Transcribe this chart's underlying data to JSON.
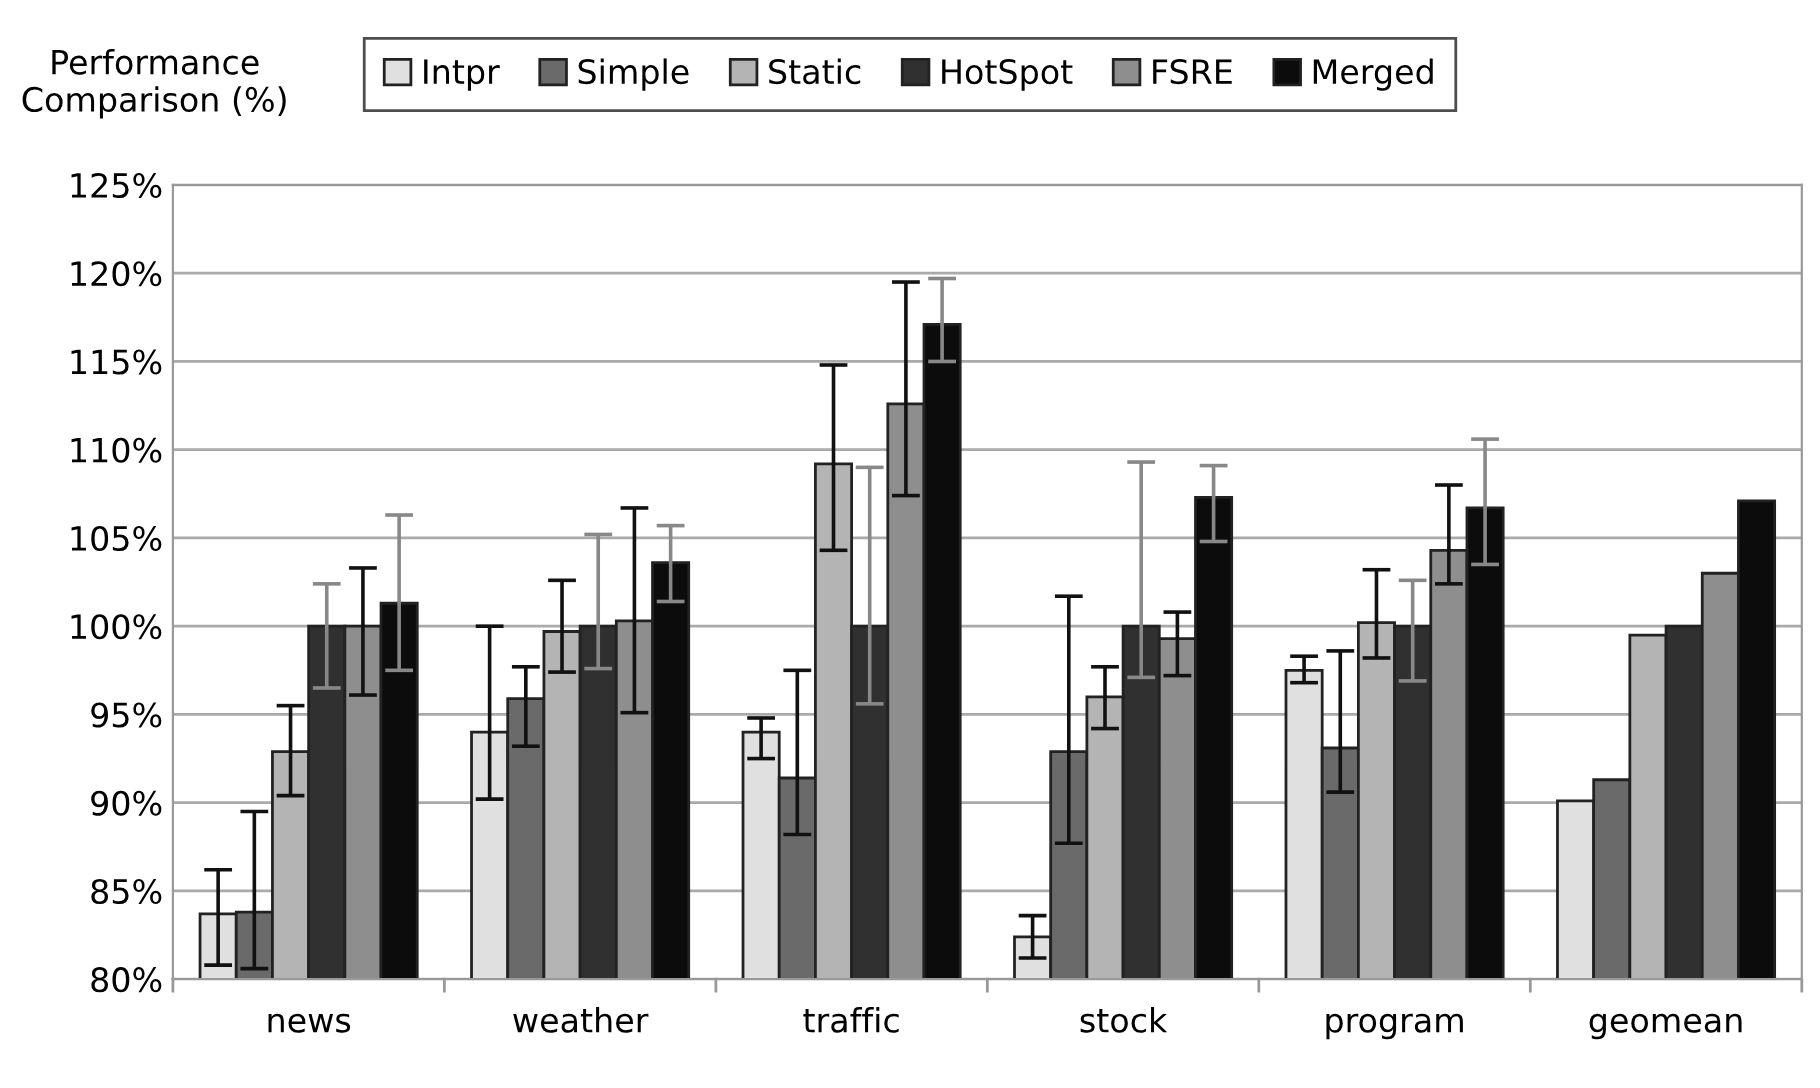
{
  "chart_data": {
    "type": "bar",
    "ylabel": "Performance\nComparison (%)",
    "categories": [
      "news",
      "weather",
      "traffic",
      "stock",
      "program",
      "geomean"
    ],
    "series": [
      {
        "name": "Intpr",
        "color": "#e0e0e0",
        "values": [
          83.7,
          94.0,
          94.0,
          82.4,
          97.5,
          90.1
        ],
        "errors": [
          [
            80.8,
            86.2
          ],
          [
            90.2,
            100
          ],
          [
            92.5,
            94.8
          ],
          [
            81.2,
            83.6
          ],
          [
            96.8,
            98.3
          ],
          null
        ]
      },
      {
        "name": "Simple",
        "color": "#6a6a6a",
        "values": [
          83.8,
          95.9,
          91.4,
          92.9,
          93.1,
          91.3
        ],
        "errors": [
          [
            80.6,
            89.5
          ],
          [
            93.2,
            97.7
          ],
          [
            88.2,
            97.5
          ],
          [
            87.7,
            101.7
          ],
          [
            90.6,
            98.6
          ],
          null
        ]
      },
      {
        "name": "Static",
        "color": "#b4b4b4",
        "values": [
          92.9,
          99.7,
          109.2,
          96.0,
          100.2,
          99.5
        ],
        "errors": [
          [
            90.4,
            95.5
          ],
          [
            97.4,
            102.6
          ],
          [
            104.3,
            114.8
          ],
          [
            94.2,
            97.7
          ],
          [
            98.2,
            103.2
          ],
          null
        ]
      },
      {
        "name": "HotSpot",
        "color": "#303030",
        "values": [
          100,
          100,
          100,
          100,
          100,
          100
        ],
        "errors": [
          [
            96.5,
            102.4
          ],
          [
            97.6,
            105.2
          ],
          [
            95.6,
            109
          ],
          [
            97.1,
            109.3
          ],
          [
            96.9,
            102.6
          ],
          null
        ]
      },
      {
        "name": "FSRE",
        "color": "#8e8e8e",
        "values": [
          100,
          100.3,
          112.6,
          99.3,
          104.3,
          103.0
        ],
        "errors": [
          [
            96.1,
            103.3
          ],
          [
            95.1,
            106.7
          ],
          [
            107.4,
            119.5
          ],
          [
            97.2,
            100.8
          ],
          [
            102.4,
            108
          ],
          null
        ]
      },
      {
        "name": "Merged",
        "color": "#0c0c0c",
        "values": [
          101.3,
          103.6,
          117.1,
          107.3,
          106.7,
          107.1
        ],
        "errors": [
          [
            97.5,
            106.3
          ],
          [
            101.4,
            105.7
          ],
          [
            115,
            119.7
          ],
          [
            104.8,
            109.1
          ],
          [
            103.5,
            110.6
          ],
          null
        ]
      }
    ],
    "ylim": [
      80,
      125
    ],
    "yticks": [
      {
        "value": 80,
        "label": "80%"
      },
      {
        "value": 85,
        "label": "85%"
      },
      {
        "value": 90,
        "label": "90%"
      },
      {
        "value": 95,
        "label": "95%"
      },
      {
        "value": 100,
        "label": "100%"
      },
      {
        "value": 105,
        "label": "105%"
      },
      {
        "value": 110,
        "label": "110%"
      },
      {
        "value": 115,
        "label": "115%"
      },
      {
        "value": 120,
        "label": "120%"
      },
      {
        "value": 125,
        "label": "125%"
      }
    ],
    "grid": "y",
    "legend": "top"
  }
}
